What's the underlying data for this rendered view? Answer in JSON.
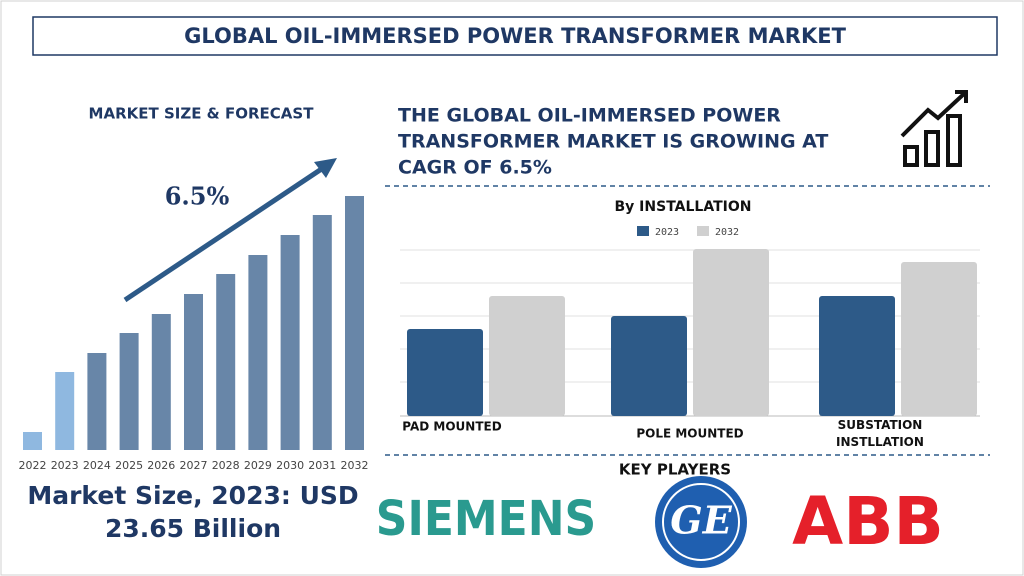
{
  "title": "GLOBAL OIL-IMMERSED POWER TRANSFORMER MARKET",
  "headline": [
    "THE GLOBAL OIL-IMMERSED POWER",
    "TRANSFORMER MARKET IS GROWING AT",
    "CAGR OF 6.5%"
  ],
  "market_size": [
    "Market Size, 2023: USD",
    "23.65 Billion"
  ],
  "chart_data": [
    {
      "type": "bar",
      "title": "MARKET SIZE & FORECAST",
      "annotation": "6.5%",
      "categories": [
        "2022",
        "2023",
        "2024",
        "2025",
        "2026",
        "2027",
        "2028",
        "2029",
        "2030",
        "2031",
        "2032"
      ],
      "values": [
        18,
        78,
        97,
        117,
        136,
        156,
        176,
        195,
        215,
        235,
        254
      ],
      "colors": [
        "#8fb8e0",
        "#8fb8e0",
        "#6886a8",
        "#6886a8",
        "#6886a8",
        "#6886a8",
        "#6886a8",
        "#6886a8",
        "#6886a8",
        "#6886a8",
        "#6886a8"
      ]
    },
    {
      "type": "grouped-bar",
      "title": "By INSTALLATION",
      "categories": [
        "PAD MOUNTED",
        "POLE MOUNTED",
        "SUBSTATION INSTLLATION"
      ],
      "series": [
        {
          "name": "2023",
          "color": "#2d5a88",
          "values": [
            87,
            100,
            120
          ]
        },
        {
          "name": "2032",
          "color": "#d0d0d0",
          "values": [
            120,
            167,
            154
          ]
        }
      ]
    }
  ],
  "key_players": {
    "title": "KEY PLAYERS",
    "logos": [
      "SIEMENS",
      "GE",
      "ABB"
    ]
  }
}
